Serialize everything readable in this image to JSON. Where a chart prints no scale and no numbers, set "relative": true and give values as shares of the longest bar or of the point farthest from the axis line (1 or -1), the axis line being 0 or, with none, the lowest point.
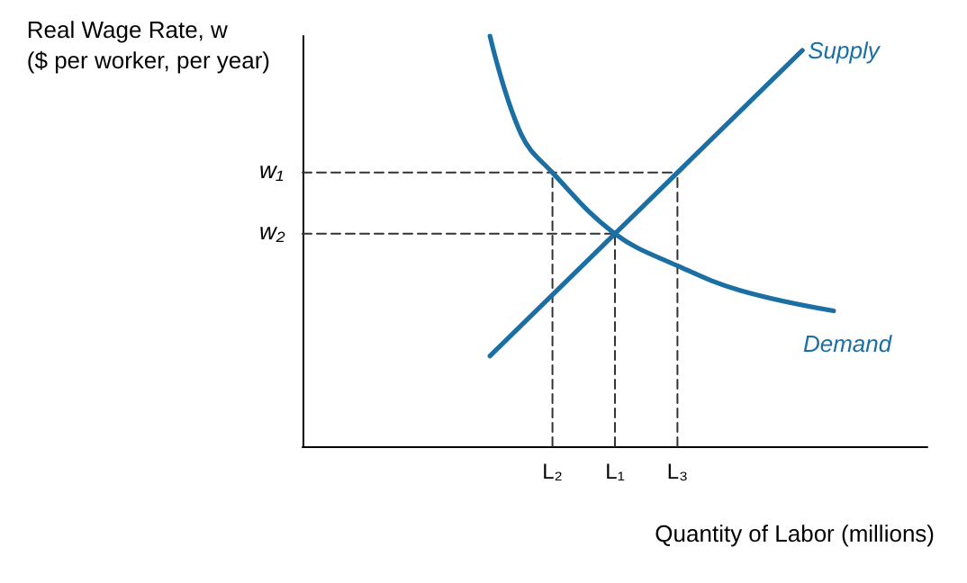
{
  "chart_data": {
    "type": "line",
    "relative": true,
    "xlabel": "Quantity of Labor (millions)",
    "ylabel": "Real Wage Rate, w\n($ per worker, per year)",
    "categories": [
      null,
      null,
      null,
      null,
      null,
      null,
      null,
      null,
      "L₂",
      null,
      "L₁",
      null,
      "L₃",
      null,
      null,
      null,
      null,
      null,
      null,
      null,
      null
    ],
    "grid": false,
    "legend": false,
    "marker": "none",
    "series": [
      {
        "name": "Supply",
        "color": "#1b6fa3",
        "values": [
          null,
          null,
          null,
          null,
          null,
          null,
          0.22,
          null,
          null,
          null,
          null,
          null,
          null,
          null,
          null,
          null,
          0.965,
          null,
          null,
          null,
          null
        ],
        "line_style": "solid"
      },
      {
        "name": "Demand",
        "color": "#1b6fa3",
        "values": [
          null,
          null,
          null,
          null,
          null,
          null,
          1.0,
          0.76,
          0.667,
          null,
          0.518,
          null,
          0.44,
          null,
          0.38,
          null,
          null,
          0.33,
          null,
          null,
          null
        ],
        "line_style": "solid"
      },
      {
        "color": "#333333",
        "values": [
          0.667,
          null,
          null,
          null,
          null,
          null,
          null,
          null,
          null,
          null,
          null,
          null,
          0.667,
          null,
          null,
          null,
          null,
          null,
          null,
          null,
          null
        ],
        "line_style": "dashed"
      },
      {
        "color": "#333333",
        "values": [
          0.518,
          null,
          null,
          null,
          null,
          null,
          null,
          null,
          null,
          null,
          0.518,
          null,
          null,
          null,
          null,
          null,
          null,
          null,
          null,
          null,
          null
        ],
        "line_style": "dashed"
      },
      {
        "color": "#333333",
        "x": [
          "L₂",
          "L₂"
        ],
        "values": [
          0,
          0.667
        ],
        "line_style": "dashed"
      },
      {
        "color": "#333333",
        "x": [
          "L₁",
          "L₁"
        ],
        "values": [
          0,
          0.518
        ],
        "line_style": "dashed"
      },
      {
        "color": "#333333",
        "x": [
          "L₃",
          "L₃"
        ],
        "values": [
          0,
          0.667
        ],
        "line_style": "dashed"
      }
    ],
    "annotations": [
      "w₁",
      "w₂"
    ]
  }
}
